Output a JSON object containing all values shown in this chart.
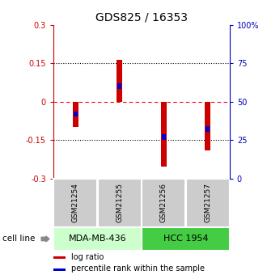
{
  "title": "GDS825 / 16353",
  "samples": [
    "GSM21254",
    "GSM21255",
    "GSM21256",
    "GSM21257"
  ],
  "log_ratios": [
    -0.1,
    0.165,
    -0.255,
    -0.19
  ],
  "percentile_ranks": [
    0.42,
    0.6,
    0.27,
    0.32
  ],
  "cell_lines": [
    {
      "label": "MDA-MB-436",
      "samples": [
        0,
        1
      ],
      "color": "#ccffcc"
    },
    {
      "label": "HCC 1954",
      "samples": [
        2,
        3
      ],
      "color": "#44cc44"
    }
  ],
  "ylim": [
    -0.3,
    0.3
  ],
  "yticks_left": [
    -0.3,
    -0.15,
    0.0,
    0.15,
    0.3
  ],
  "yticks_right": [
    0,
    25,
    50,
    75,
    100
  ],
  "bar_color_red": "#cc0000",
  "bar_color_blue": "#0000cc",
  "bar_width": 0.13,
  "blue_bar_width": 0.09,
  "blue_bar_height": 0.022,
  "left_tick_color": "#cc0000",
  "right_tick_color": "#0000bb",
  "sample_box_color": "#cccccc",
  "cell_line_label": "cell line",
  "legend_red": "log ratio",
  "legend_blue": "percentile rank within the sample",
  "background_color": "#ffffff"
}
